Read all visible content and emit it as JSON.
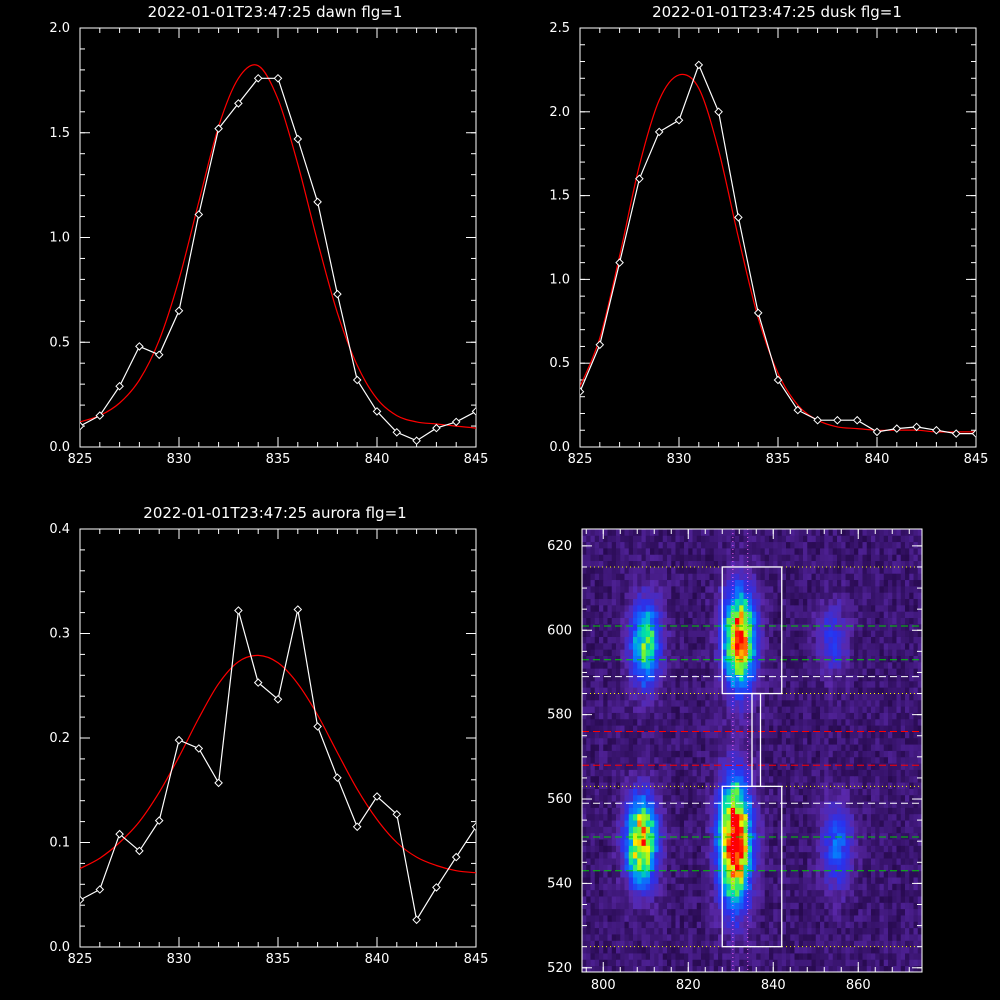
{
  "colors": {
    "background": "#000000",
    "axes": "#ffffff",
    "observed": "#ffffff",
    "fit": "#ff0000",
    "dotted_guide": "#ffff00",
    "center_dotted": "#ff66ff",
    "white_dash": "#ffffff",
    "green_dash": "#00cc00",
    "red_dash": "#ff0000"
  },
  "chart_data": [
    {
      "type": "line",
      "title": "2022-01-01T23:47:25 dawn flg=1",
      "xlim": [
        825,
        845
      ],
      "ylim": [
        0,
        2.0
      ],
      "xticks": [
        825,
        830,
        835,
        840,
        845
      ],
      "xtick_labels": [
        "825",
        "830",
        "835",
        "840",
        "845"
      ],
      "yticks": [
        0,
        0.5,
        1.0,
        1.5,
        2.0
      ],
      "ytick_labels": [
        "0.0",
        "0.5",
        "1.0",
        "1.5",
        "2.0"
      ],
      "grid": false,
      "series": [
        {
          "kind": "observed",
          "x": [
            825,
            826,
            827,
            828,
            829,
            830,
            831,
            832,
            833,
            834,
            835,
            836,
            837,
            838,
            839,
            840,
            841,
            842,
            843,
            844,
            845
          ],
          "y": [
            0.1,
            0.15,
            0.29,
            0.48,
            0.44,
            0.65,
            1.11,
            1.52,
            1.64,
            1.76,
            1.76,
            1.47,
            1.17,
            0.73,
            0.32,
            0.17,
            0.07,
            0.03,
            0.09,
            0.12,
            0.17
          ]
        },
        {
          "kind": "fit",
          "x": [
            825,
            826,
            827,
            828,
            829,
            830,
            831,
            832,
            833,
            834,
            835,
            836,
            837,
            838,
            839,
            840,
            841,
            842,
            843,
            844,
            845
          ],
          "y": [
            0.12,
            0.15,
            0.21,
            0.32,
            0.51,
            0.8,
            1.17,
            1.53,
            1.76,
            1.82,
            1.66,
            1.35,
            0.98,
            0.64,
            0.39,
            0.23,
            0.15,
            0.12,
            0.11,
            0.1,
            0.09
          ]
        }
      ]
    },
    {
      "type": "line",
      "title": "2022-01-01T23:47:25 dusk flg=1",
      "xlim": [
        825,
        845
      ],
      "ylim": [
        0,
        2.5
      ],
      "xticks": [
        825,
        830,
        835,
        840,
        845
      ],
      "xtick_labels": [
        "825",
        "830",
        "835",
        "840",
        "845"
      ],
      "yticks": [
        0,
        0.5,
        1.0,
        1.5,
        2.0,
        2.5
      ],
      "ytick_labels": [
        "0.0",
        "0.5",
        "1.0",
        "1.5",
        "2.0",
        "2.5"
      ],
      "grid": false,
      "series": [
        {
          "kind": "observed",
          "x": [
            825,
            826,
            827,
            828,
            829,
            830,
            831,
            832,
            833,
            834,
            835,
            836,
            837,
            838,
            839,
            840,
            841,
            842,
            843,
            844,
            845
          ],
          "y": [
            0.33,
            0.61,
            1.1,
            1.6,
            1.88,
            1.95,
            2.28,
            2.0,
            1.37,
            0.8,
            0.4,
            0.22,
            0.16,
            0.16,
            0.16,
            0.09,
            0.11,
            0.12,
            0.1,
            0.08,
            0.08
          ]
        },
        {
          "kind": "fit",
          "x": [
            825,
            826,
            827,
            828,
            829,
            830,
            831,
            832,
            833,
            834,
            835,
            836,
            837,
            838,
            839,
            840,
            841,
            842,
            843,
            844,
            845
          ],
          "y": [
            0.36,
            0.65,
            1.14,
            1.68,
            2.07,
            2.22,
            2.14,
            1.77,
            1.25,
            0.77,
            0.44,
            0.25,
            0.16,
            0.12,
            0.11,
            0.1,
            0.1,
            0.1,
            0.09,
            0.09,
            0.09
          ]
        }
      ]
    },
    {
      "type": "line",
      "title": "2022-01-01T23:47:25 aurora flg=1",
      "xlim": [
        825,
        845
      ],
      "ylim": [
        0,
        0.4
      ],
      "xticks": [
        825,
        830,
        835,
        840,
        845
      ],
      "xtick_labels": [
        "825",
        "830",
        "835",
        "840",
        "845"
      ],
      "yticks": [
        0,
        0.1,
        0.2,
        0.3,
        0.4
      ],
      "ytick_labels": [
        "0.0",
        "0.1",
        "0.2",
        "0.3",
        "0.4"
      ],
      "grid": false,
      "series": [
        {
          "kind": "observed",
          "x": [
            825,
            826,
            827,
            828,
            829,
            830,
            831,
            832,
            833,
            834,
            835,
            836,
            837,
            838,
            839,
            840,
            841,
            842,
            843,
            844,
            845
          ],
          "y": [
            0.045,
            0.055,
            0.108,
            0.092,
            0.121,
            0.198,
            0.19,
            0.157,
            0.322,
            0.253,
            0.237,
            0.323,
            0.211,
            0.162,
            0.115,
            0.144,
            0.127,
            0.026,
            0.057,
            0.086,
            0.115
          ]
        },
        {
          "kind": "fit",
          "x": [
            825,
            826,
            827,
            828,
            829,
            830,
            831,
            832,
            833,
            834,
            835,
            836,
            837,
            838,
            839,
            840,
            841,
            842,
            843,
            844,
            845
          ],
          "y": [
            0.075,
            0.085,
            0.1,
            0.12,
            0.148,
            0.182,
            0.219,
            0.252,
            0.273,
            0.279,
            0.272,
            0.252,
            0.222,
            0.186,
            0.151,
            0.122,
            0.1,
            0.086,
            0.078,
            0.073,
            0.071
          ]
        }
      ]
    },
    {
      "type": "heatmap",
      "title": "",
      "xlim": [
        795,
        875
      ],
      "ylim": [
        519,
        624
      ],
      "xticks": [
        800,
        820,
        840,
        860
      ],
      "xtick_labels": [
        "800",
        "820",
        "840",
        "860"
      ],
      "yticks": [
        520,
        540,
        560,
        580,
        600,
        620
      ],
      "ytick_labels": [
        "520",
        "540",
        "560",
        "580",
        "600",
        "620"
      ],
      "grid": false,
      "blobs": [
        {
          "x": 810,
          "y": 597,
          "sx": 2.5,
          "sy": 7,
          "amp": 0.55
        },
        {
          "x": 809,
          "y": 550,
          "sx": 2.5,
          "sy": 7,
          "amp": 0.8
        },
        {
          "x": 832,
          "y": 598,
          "sx": 2.6,
          "sy": 8,
          "amp": 0.85
        },
        {
          "x": 831,
          "y": 550,
          "sx": 2.6,
          "sy": 10,
          "amp": 1.0
        },
        {
          "x": 854,
          "y": 598,
          "sx": 2.5,
          "sy": 6,
          "amp": 0.2
        },
        {
          "x": 855,
          "y": 549,
          "sx": 2.5,
          "sy": 7,
          "amp": 0.3
        }
      ],
      "boxes": [
        {
          "x0": 828,
          "x1": 842,
          "y0": 585,
          "y1": 615
        },
        {
          "x0": 828,
          "x1": 842,
          "y0": 525,
          "y1": 563
        }
      ],
      "connector": {
        "x0": 835,
        "x1": 837,
        "y0": 563,
        "y1": 585
      },
      "vertical_dotted": [
        830.5,
        834
      ],
      "white_dotted_h": [
        525,
        563,
        585,
        615
      ],
      "white_dashed_h": [
        559,
        589
      ],
      "green_dashed_h": [
        543,
        551,
        593,
        601
      ],
      "red_dashed_h": [
        568,
        576
      ]
    }
  ]
}
